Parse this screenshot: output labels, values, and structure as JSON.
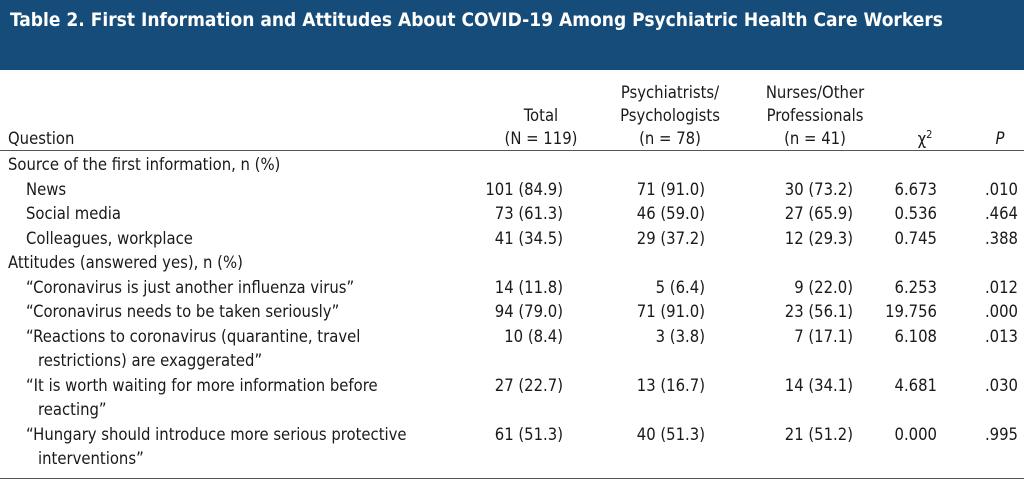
{
  "title": "Table 2. First Information and Attitudes About COVID-19 Among Psychiatric Health Care Workers",
  "header": {
    "question": "Question",
    "total": [
      "Total",
      "(N = 119)"
    ],
    "psych": [
      "Psychiatrists/",
      "Psychologists",
      "(n = 78)"
    ],
    "nurses": [
      "Nurses/Other",
      "Professionals",
      "(n = 41)"
    ],
    "chi": {
      "base": "χ",
      "sup": "2"
    },
    "p": "P"
  },
  "sections": [
    {
      "label": "Source of the first information, n (%)",
      "rows": [
        {
          "question": [
            "News"
          ],
          "values": [
            "101 (84.9)",
            "71 (91.0)",
            "30 (73.2)",
            "6.673",
            ".010"
          ]
        },
        {
          "question": [
            "Social media"
          ],
          "values": [
            "73 (61.3)",
            "46 (59.0)",
            "27 (65.9)",
            "0.536",
            ".464"
          ]
        },
        {
          "question": [
            "Colleagues, workplace"
          ],
          "values": [
            "41 (34.5)",
            "29 (37.2)",
            "12 (29.3)",
            "0.745",
            ".388"
          ]
        }
      ]
    },
    {
      "label": "Attitudes (answered yes), n (%)",
      "rows": [
        {
          "question": [
            "“Coronavirus is just another influenza virus”"
          ],
          "values": [
            "14 (11.8)",
            "5 (6.4)",
            "9 (22.0)",
            "6.253",
            ".012"
          ]
        },
        {
          "question": [
            "“Coronavirus needs to be taken seriously”"
          ],
          "values": [
            "94 (79.0)",
            "71 (91.0)",
            "23 (56.1)",
            "19.756",
            ".000"
          ]
        },
        {
          "question": [
            "“Reactions to coronavirus (quarantine, travel",
            "restrictions) are exaggerated”"
          ],
          "values": [
            "10 (8.4)",
            "3 (3.8)",
            "7 (17.1)",
            "6.108",
            ".013"
          ]
        },
        {
          "question": [
            "“It is worth waiting for more information before",
            "reacting”"
          ],
          "values": [
            "27 (22.7)",
            "13 (16.7)",
            "14 (34.1)",
            "4.681",
            ".030"
          ]
        },
        {
          "question": [
            "“Hungary should introduce more serious protective",
            "interventions”"
          ],
          "values": [
            "61 (51.3)",
            "40 (51.3)",
            "21 (51.2)",
            "0.000",
            ".995"
          ]
        }
      ]
    }
  ]
}
